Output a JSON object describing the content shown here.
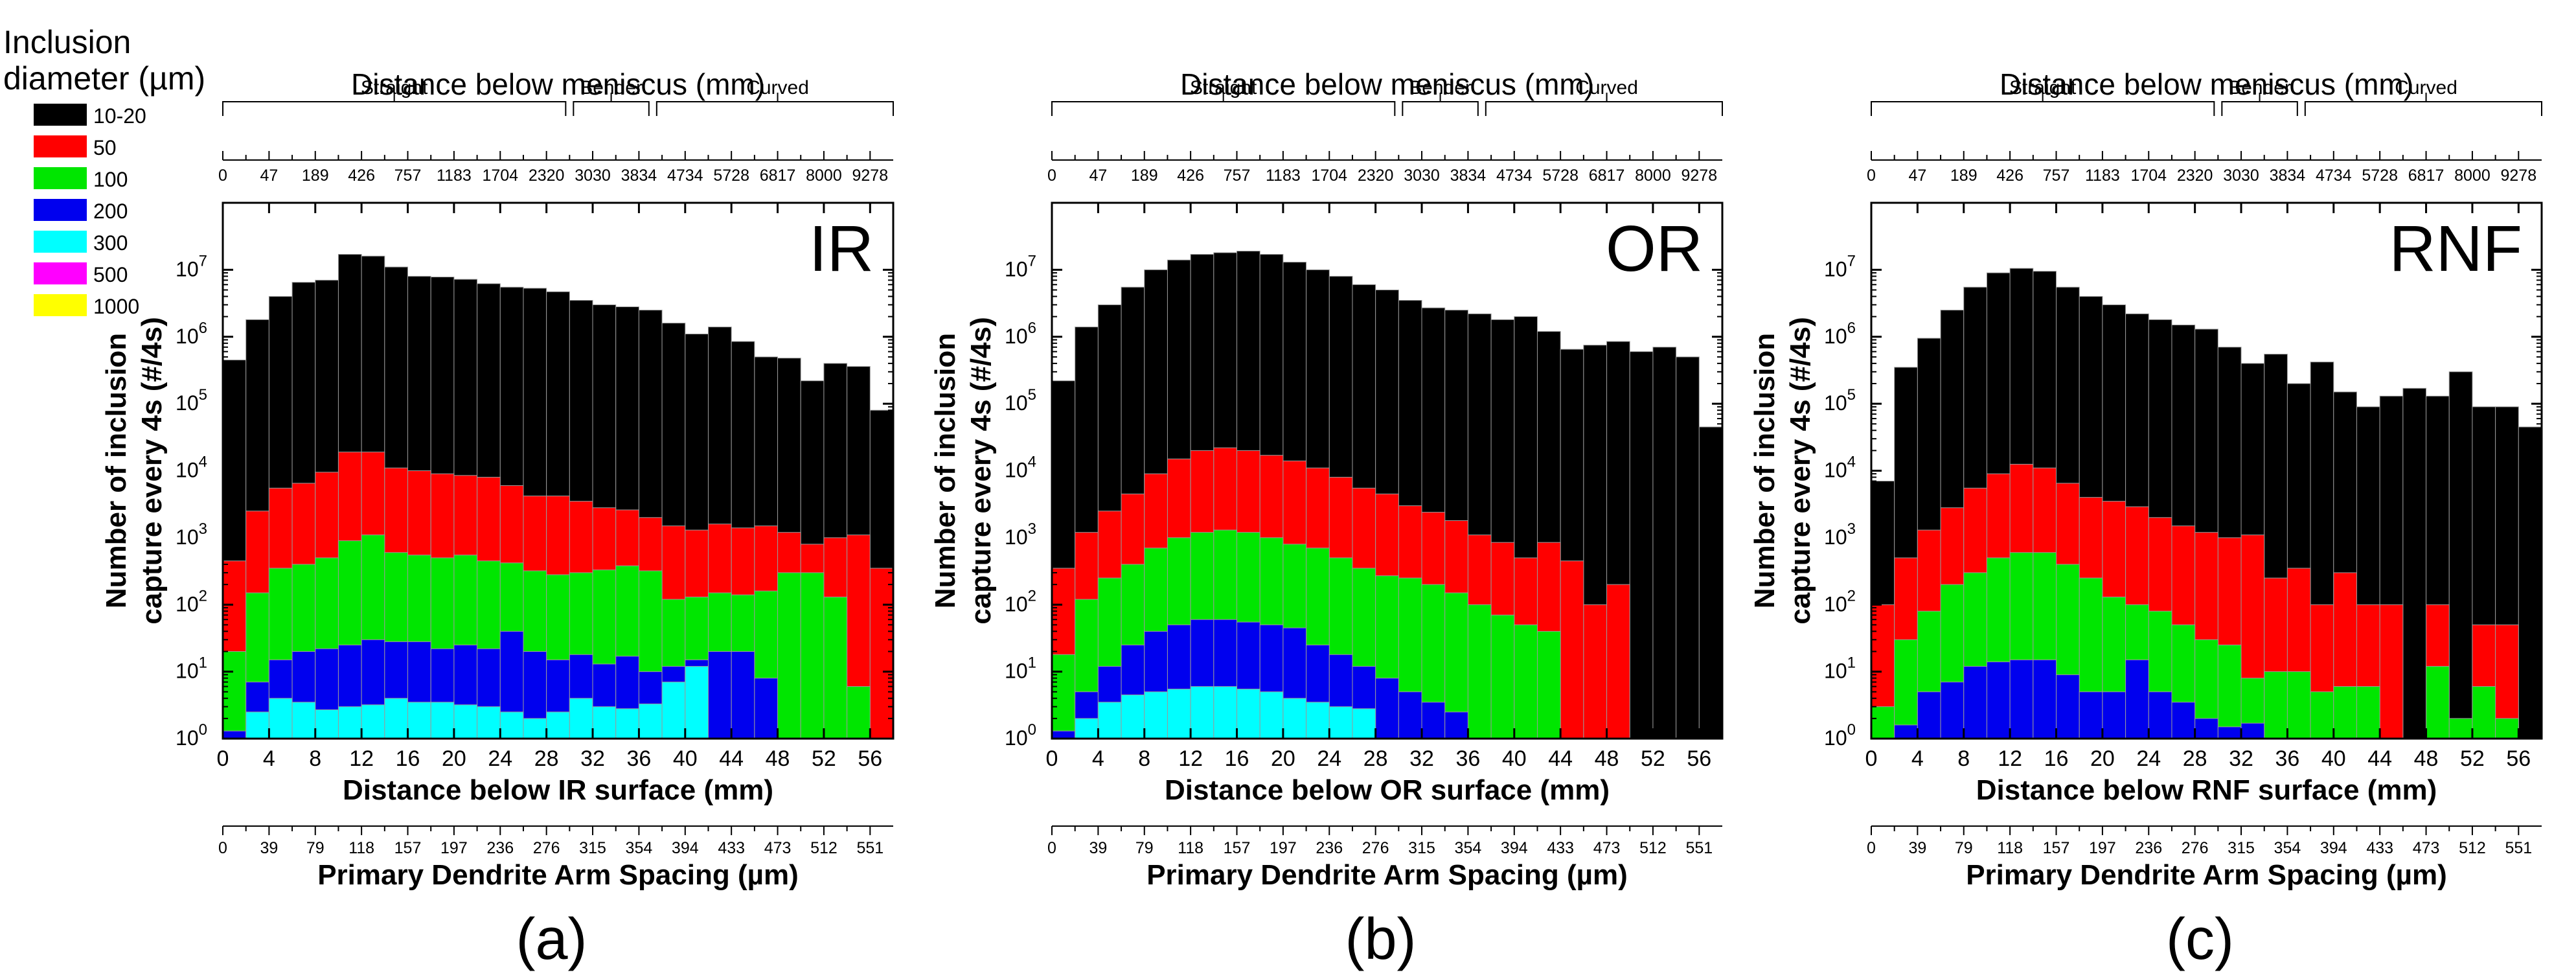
{
  "legend": {
    "title_line1": "Inclusion",
    "title_line2": "diameter (µm)",
    "classes": [
      {
        "label": "10-20",
        "color": "#000000"
      },
      {
        "label": "50",
        "color": "#ff0000"
      },
      {
        "label": "100",
        "color": "#00e600"
      },
      {
        "label": "200",
        "color": "#0000ee"
      },
      {
        "label": "300",
        "color": "#00ffff"
      },
      {
        "label": "500",
        "color": "#ff00ff"
      },
      {
        "label": "1000",
        "color": "#ffff00"
      }
    ]
  },
  "shared": {
    "top_axis_title": "Distance below meniscus (mm)",
    "zones": [
      "Straight",
      "Bender",
      "Curved"
    ],
    "meniscus_ticks": [
      "0",
      "47",
      "189",
      "426",
      "757",
      "1183",
      "1704",
      "2320",
      "3030",
      "3834",
      "4734",
      "5728",
      "6817",
      "8000",
      "9278"
    ],
    "pdas_ticks": [
      "0",
      "39",
      "79",
      "118",
      "157",
      "197",
      "236",
      "276",
      "315",
      "354",
      "394",
      "433",
      "473",
      "512",
      "551"
    ],
    "pdas_axis_title": "Primary Dendrite Arm Spacing (µm)",
    "ylabel_line1": "Number of inclusion",
    "ylabel_line2": "capture every 4s (#/4s)",
    "x_ticks": [
      "0",
      "4",
      "8",
      "12",
      "16",
      "20",
      "24",
      "28",
      "32",
      "36",
      "40",
      "44",
      "48",
      "52",
      "56"
    ],
    "y_ticks": [
      {
        "base": "10",
        "exp": "0"
      },
      {
        "base": "10",
        "exp": "1"
      },
      {
        "base": "10",
        "exp": "2"
      },
      {
        "base": "10",
        "exp": "3"
      },
      {
        "base": "10",
        "exp": "4"
      },
      {
        "base": "10",
        "exp": "5"
      },
      {
        "base": "10",
        "exp": "6"
      },
      {
        "base": "10",
        "exp": "7"
      }
    ]
  },
  "chart_data": [
    {
      "type": "bar",
      "stacked": "overlaid-log",
      "panel_caption": "(a)",
      "panel_name": "IR",
      "title": "Distance below meniscus (mm)",
      "xlabel": "Distance below IR surface (mm)",
      "ylabel": "Number of inclusion capture every 4s (#/4s)",
      "xlim": [
        0,
        58
      ],
      "ylim": [
        1,
        100000000
      ],
      "yscale": "log",
      "categories": [
        0,
        2,
        4,
        6,
        8,
        10,
        12,
        14,
        16,
        18,
        20,
        22,
        24,
        26,
        28,
        30,
        32,
        34,
        36,
        38,
        40,
        42,
        44,
        46,
        48,
        50,
        52,
        54,
        56
      ],
      "series": [
        {
          "name": "10-20",
          "values": [
            450000,
            1800000,
            4000000,
            6500000,
            7000000,
            17000000,
            16000000,
            11000000,
            8000000,
            7800000,
            7200000,
            6200000,
            5500000,
            5300000,
            4700000,
            3500000,
            3000000,
            2800000,
            2500000,
            1600000,
            1100000,
            1400000,
            850000,
            500000,
            480000,
            220000,
            400000,
            360000,
            80000
          ]
        },
        {
          "name": "50",
          "values": [
            450,
            2500,
            5500,
            6500,
            9500,
            19000,
            19000,
            11000,
            10000,
            9000,
            8500,
            8000,
            6000,
            4200,
            4200,
            3500,
            2800,
            2600,
            2000,
            1500,
            1300,
            1600,
            1400,
            1500,
            1200,
            800,
            1000,
            1100,
            350
          ]
        },
        {
          "name": "100",
          "values": [
            20,
            150,
            350,
            400,
            500,
            900,
            1100,
            600,
            550,
            500,
            550,
            450,
            420,
            320,
            280,
            300,
            330,
            380,
            320,
            120,
            130,
            150,
            140,
            160,
            300,
            300,
            130,
            6,
            0
          ]
        },
        {
          "name": "200",
          "values": [
            1.3,
            7,
            15,
            20,
            22,
            25,
            30,
            28,
            28,
            22,
            25,
            22,
            40,
            20,
            15,
            18,
            13,
            17,
            10,
            12,
            15,
            20,
            20,
            8,
            0,
            0,
            0,
            0,
            0
          ]
        },
        {
          "name": "300",
          "values": [
            0,
            2.5,
            4,
            3.5,
            2.7,
            3,
            3.2,
            4,
            3.5,
            3.5,
            3.2,
            3,
            2.5,
            2,
            2.5,
            4,
            3,
            2.8,
            3.3,
            7,
            12,
            0,
            0,
            0,
            0,
            0,
            0,
            0,
            0
          ]
        }
      ]
    },
    {
      "type": "bar",
      "stacked": "overlaid-log",
      "panel_caption": "(b)",
      "panel_name": "OR",
      "title": "Distance below meniscus (mm)",
      "xlabel": "Distance below OR surface (mm)",
      "ylabel": "Number of inclusion capture every 4s (#/4s)",
      "xlim": [
        0,
        58
      ],
      "ylim": [
        1,
        100000000
      ],
      "yscale": "log",
      "categories": [
        0,
        2,
        4,
        6,
        8,
        10,
        12,
        14,
        16,
        18,
        20,
        22,
        24,
        26,
        28,
        30,
        32,
        34,
        36,
        38,
        40,
        42,
        44,
        46,
        48,
        50,
        52,
        54,
        56
      ],
      "series": [
        {
          "name": "10-20",
          "values": [
            220000,
            1400000,
            3000000,
            5500000,
            10000000,
            14000000,
            17000000,
            18000000,
            19000000,
            17000000,
            13000000,
            10000000,
            8000000,
            6000000,
            5000000,
            3500000,
            2700000,
            2500000,
            2200000,
            1800000,
            2000000,
            1200000,
            650000,
            750000,
            850000,
            600000,
            700000,
            500000,
            45000
          ]
        },
        {
          "name": "50",
          "values": [
            350,
            1200,
            2500,
            4500,
            9000,
            15000,
            20000,
            22000,
            20000,
            17000,
            14000,
            11000,
            8000,
            5500,
            4500,
            3000,
            2400,
            1800,
            1100,
            850,
            500,
            850,
            450,
            100,
            200,
            0,
            0,
            0,
            0
          ]
        },
        {
          "name": "100",
          "values": [
            18,
            120,
            250,
            400,
            700,
            1000,
            1200,
            1300,
            1200,
            1000,
            800,
            700,
            500,
            350,
            270,
            250,
            200,
            150,
            100,
            70,
            50,
            40,
            0,
            0,
            0,
            0,
            0,
            0,
            0
          ]
        },
        {
          "name": "200",
          "values": [
            1.3,
            5,
            12,
            25,
            40,
            50,
            60,
            60,
            55,
            50,
            45,
            25,
            18,
            12,
            8,
            5,
            3.5,
            2.5,
            0,
            0,
            0,
            0,
            0,
            0,
            0,
            0,
            0,
            0,
            0
          ]
        },
        {
          "name": "300",
          "values": [
            0,
            2,
            3.5,
            4.5,
            5,
            5.5,
            6,
            6,
            5.5,
            5,
            4,
            3.5,
            3,
            2.8,
            0,
            0,
            0,
            0,
            0,
            0,
            0,
            0,
            0,
            0,
            0,
            0,
            0,
            0,
            0
          ]
        }
      ]
    },
    {
      "type": "bar",
      "stacked": "overlaid-log",
      "panel_caption": "(c)",
      "panel_name": "RNF",
      "title": "Distance below meniscus (mm)",
      "xlabel": "Distance below RNF surface (mm)",
      "ylabel": "Number of inclusion capture every 4s (#/4s)",
      "xlim": [
        0,
        58
      ],
      "ylim": [
        1,
        100000000
      ],
      "yscale": "log",
      "categories": [
        0,
        2,
        4,
        6,
        8,
        10,
        12,
        14,
        16,
        18,
        20,
        22,
        24,
        26,
        28,
        30,
        32,
        34,
        36,
        38,
        40,
        42,
        44,
        46,
        48,
        50,
        52,
        54,
        56
      ],
      "series": [
        {
          "name": "10-20",
          "values": [
            7000,
            350000,
            950000,
            2500000,
            5500000,
            9000000,
            10500000,
            9500000,
            5500000,
            4000000,
            3000000,
            2200000,
            1800000,
            1500000,
            1300000,
            700000,
            400000,
            550000,
            200000,
            420000,
            150000,
            90000,
            130000,
            170000,
            130000,
            300000,
            90000,
            90000,
            45000
          ]
        },
        {
          "name": "50",
          "values": [
            100,
            500,
            1300,
            2800,
            5500,
            9000,
            12500,
            11000,
            6500,
            4000,
            3500,
            2900,
            2000,
            1500,
            1200,
            1000,
            1100,
            250,
            350,
            100,
            300,
            100,
            100,
            0,
            100,
            0,
            50,
            50,
            0
          ]
        },
        {
          "name": "100",
          "values": [
            3,
            30,
            80,
            200,
            300,
            500,
            600,
            600,
            400,
            250,
            130,
            100,
            80,
            50,
            30,
            25,
            8,
            10,
            10,
            5,
            6,
            6,
            0,
            0,
            12,
            2,
            6,
            2,
            0
          ]
        },
        {
          "name": "200",
          "values": [
            0,
            1.6,
            5,
            7,
            12,
            14,
            15,
            15,
            9,
            5,
            5,
            15,
            5,
            3.5,
            2,
            1.5,
            1.7,
            0,
            0,
            0,
            0,
            0,
            0,
            0,
            0,
            0,
            0,
            0,
            0
          ]
        },
        {
          "name": "300",
          "values": [
            0,
            0,
            0,
            0,
            0,
            0,
            0,
            0,
            0,
            0,
            0,
            0,
            0,
            0,
            0,
            0,
            0,
            0,
            0,
            0,
            0,
            0,
            0,
            0,
            0,
            0,
            0,
            0,
            0
          ]
        }
      ]
    }
  ]
}
